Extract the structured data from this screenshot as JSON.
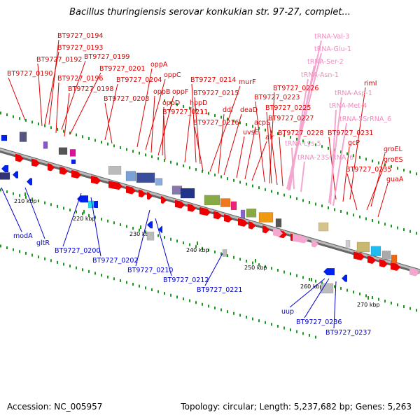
{
  "title": "Bacillus thuringiensis serovar konkukian str. 97-27, complet...",
  "footer": {
    "accession": "Accession: NC_005957",
    "info": "Topology: circular; Length: 5,237,682 bp; Genes: 5,263"
  },
  "colors": {
    "forward_label": "#dd0000",
    "reverse_label": "#0000cc",
    "rna_label": "#f08cc0",
    "backbone": "#888888",
    "forward_gene": "#ee0000",
    "reverse_gene": "#0022ee",
    "rna_gene": "#f4a6cf"
  },
  "tick_labels": [
    "210 kbp",
    "220 kbp",
    "230 kbp",
    "240 kbp",
    "250 kbp",
    "260 kbp",
    "270 kbp"
  ],
  "forward_labels": [
    "BT9727_0194",
    "BT9727_0193",
    "BT9727_0192",
    "BT9727_0199",
    "BT9727_0190",
    "BT9727_0201",
    "BT9727_0196",
    "BT9727_0204",
    "BT9727_0198",
    "BT9727_0203",
    "oppA",
    "oppC",
    "oppB",
    "oppF",
    "oppD",
    "BT9727_0211",
    "hppD",
    "BT9727_0214",
    "BT9727_0215",
    "murF",
    "BT9727_0216",
    "ddl",
    "deaD",
    "uvsE",
    "acpS",
    "alr",
    "BT9727_0226",
    "BT9727_0223",
    "BT9727_0225",
    "BT9727_0227",
    "BT9727_0228",
    "rimI",
    "BT9727_0231",
    "gcP",
    "groEL",
    "groES",
    "BT9727_0235",
    "guaA"
  ],
  "rna_labels": [
    "tRNA-Val-3",
    "tRNA-Glu-1",
    "tRNA-Ser-2",
    "tRNA-Asn-1",
    "tRNA-Asp-1",
    "tRNA-Met-4",
    "tRNA-5SrRNA_6",
    "tRNA-Lys-5",
    "tRNA-23SrRNA_6"
  ],
  "reverse_labels": [
    "modA",
    "gltR",
    "BT9727_0200",
    "BT9727_0202",
    "BT9727_0210",
    "BT9727_0212",
    "BT9727_0221",
    "uup",
    "BT9727_0236",
    "BT9727_0237"
  ]
}
